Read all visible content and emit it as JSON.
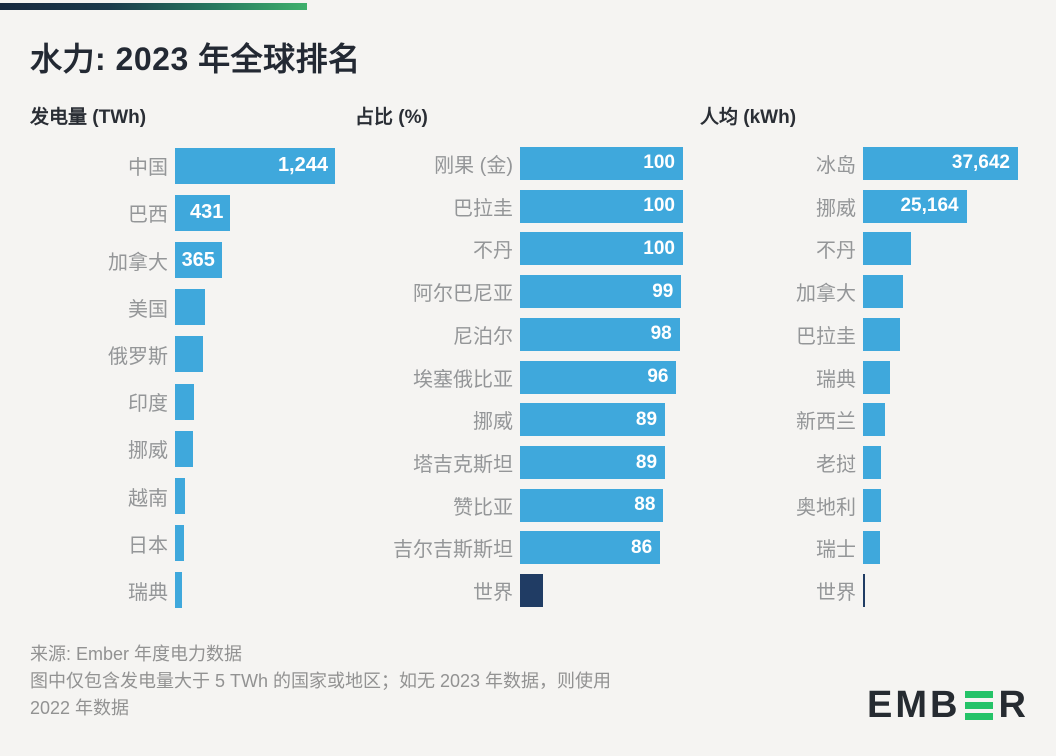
{
  "page": {
    "title": "水力: 2023 年全球排名"
  },
  "footer": {
    "lines": [
      "来源: Ember 年度电力数据",
      "图中仅包含发电量大于 5 TWh 的国家或地区；如无 2023 年数据，则使用",
      "2022 年数据"
    ]
  },
  "logo": {
    "left": "EMB",
    "right": "R"
  },
  "colors": {
    "background": "#f5f4f2",
    "bar_blue": "#3fa8dc",
    "bar_navy": "#203c64",
    "title_text": "#232933",
    "label_gray": "#949698",
    "logo_green": "#24c368",
    "gradient_start": "#16283e",
    "gradient_end": "#3fb06c"
  },
  "chart_data": [
    {
      "type": "bar",
      "orientation": "horizontal",
      "title": "发电量 (TWh)",
      "unit": "TWh",
      "xlim": [
        0,
        1244
      ],
      "max": 1244,
      "rows": [
        {
          "label": "中国",
          "value": 1244,
          "value_label": "1,244"
        },
        {
          "label": "巴西",
          "value": 431,
          "value_label": "431"
        },
        {
          "label": "加拿大",
          "value": 365,
          "value_label": "365"
        },
        {
          "label": "美国",
          "value": 236
        },
        {
          "label": "俄罗斯",
          "value": 220
        },
        {
          "label": "印度",
          "value": 150
        },
        {
          "label": "挪威",
          "value": 142
        },
        {
          "label": "越南",
          "value": 79
        },
        {
          "label": "日本",
          "value": 71
        },
        {
          "label": "瑞典",
          "value": 55
        }
      ]
    },
    {
      "type": "bar",
      "orientation": "horizontal",
      "title": "占比 (%)",
      "unit": "%",
      "xlim": [
        0,
        100
      ],
      "max": 100,
      "rows": [
        {
          "label": "刚果 (金)",
          "value": 100,
          "value_label": "100"
        },
        {
          "label": "巴拉圭",
          "value": 100,
          "value_label": "100"
        },
        {
          "label": "不丹",
          "value": 100,
          "value_label": "100"
        },
        {
          "label": "阿尔巴尼亚",
          "value": 99,
          "value_label": "99"
        },
        {
          "label": "尼泊尔",
          "value": 98,
          "value_label": "98"
        },
        {
          "label": "埃塞俄比亚",
          "value": 96,
          "value_label": "96"
        },
        {
          "label": "挪威",
          "value": 89,
          "value_label": "89"
        },
        {
          "label": "塔吉克斯坦",
          "value": 89,
          "value_label": "89"
        },
        {
          "label": "赞比亚",
          "value": 88,
          "value_label": "88"
        },
        {
          "label": "吉尔吉斯斯坦",
          "value": 86,
          "value_label": "86"
        },
        {
          "label": "世界",
          "value": 14,
          "world": true
        }
      ]
    },
    {
      "type": "bar",
      "orientation": "horizontal",
      "title": "人均 (kWh)",
      "unit": "kWh",
      "xlim": [
        0,
        37642
      ],
      "max": 37642,
      "rows": [
        {
          "label": "冰岛",
          "value": 37642,
          "value_label": "37,642"
        },
        {
          "label": "挪威",
          "value": 25164,
          "value_label": "25,164"
        },
        {
          "label": "不丹",
          "value": 11700
        },
        {
          "label": "加拿大",
          "value": 9700
        },
        {
          "label": "巴拉圭",
          "value": 9000
        },
        {
          "label": "瑞典",
          "value": 6600
        },
        {
          "label": "新西兰",
          "value": 5300
        },
        {
          "label": "老挝",
          "value": 4400
        },
        {
          "label": "奥地利",
          "value": 4400
        },
        {
          "label": "瑞士",
          "value": 4100
        },
        {
          "label": "世界",
          "value": 530,
          "world": true
        }
      ]
    }
  ]
}
